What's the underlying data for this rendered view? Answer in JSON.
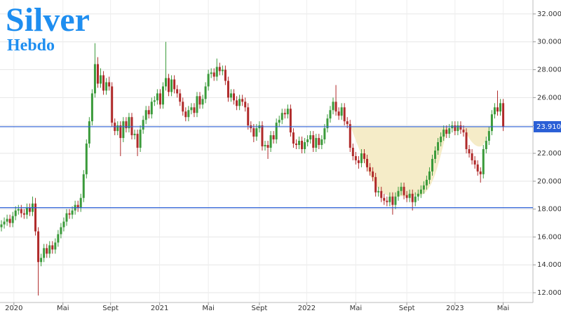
{
  "chart_data": {
    "type": "candlestick",
    "title": "Silver",
    "subtitle": "Hebdo",
    "up_color": "#3a9a3a",
    "down_color": "#b02a2a",
    "grid": true,
    "ylim": [
      11400,
      33000
    ],
    "yticks": [
      {
        "value": 12000,
        "label": "12.000"
      },
      {
        "value": 14000,
        "label": "14.000"
      },
      {
        "value": 16000,
        "label": "16.000"
      },
      {
        "value": 18000,
        "label": "18.000"
      },
      {
        "value": 20000,
        "label": "20.000"
      },
      {
        "value": 22000,
        "label": "22.000"
      },
      {
        "value": 24000,
        "label": "24.000"
      },
      {
        "value": 26000,
        "label": "26.000"
      },
      {
        "value": 28000,
        "label": "28.000"
      },
      {
        "value": 30000,
        "label": "30.000"
      },
      {
        "value": 32000,
        "label": "32.000"
      }
    ],
    "xlim": [
      -0.5,
      187
    ],
    "xticks": [
      {
        "value": 4.4,
        "label": "2020"
      },
      {
        "value": 21.7,
        "label": "Mai"
      },
      {
        "value": 38.5,
        "label": "Sept"
      },
      {
        "value": 55.8,
        "label": "2021"
      },
      {
        "value": 73,
        "label": "Mai"
      },
      {
        "value": 91,
        "label": "Sept"
      },
      {
        "value": 107.7,
        "label": "2022"
      },
      {
        "value": 125,
        "label": "Mai"
      },
      {
        "value": 143,
        "label": "Sept"
      },
      {
        "value": 160,
        "label": "2023"
      },
      {
        "value": 177,
        "label": "Mai"
      }
    ],
    "hlines": [
      {
        "value": 23910,
        "label": "23.910",
        "color": "#2a5fd6"
      },
      {
        "value": 18100,
        "color": "#2a5fd6"
      }
    ],
    "area_color": "#f5ecc8",
    "open": [
      16700,
      16900,
      17100,
      17300,
      17000,
      17500,
      17900,
      18000,
      17700,
      17600,
      18100,
      17800,
      18400,
      16400,
      14200,
      14500,
      15200,
      14800,
      15400,
      15100,
      15600,
      16200,
      16700,
      17100,
      17700,
      17600,
      17900,
      18300,
      18100,
      18800,
      20500,
      22700,
      24300,
      26300,
      28400,
      27000,
      27600,
      26500,
      27100,
      26800,
      24200,
      23600,
      24000,
      23100,
      24300,
      23800,
      24600,
      23300,
      23400,
      22400,
      23700,
      24400,
      25100,
      24800,
      25700,
      25800,
      26300,
      25500,
      26800,
      27400,
      26400,
      27300,
      26600,
      26300,
      25700,
      25000,
      24600,
      25100,
      25300,
      24900,
      26100,
      25500,
      25900,
      26800,
      27700,
      27800,
      27500,
      28200,
      27900,
      28000,
      27200,
      26000,
      26300,
      25800,
      25400,
      25900,
      25700,
      25300,
      24000,
      23800,
      23200,
      23800,
      24000,
      22500,
      22600,
      22400,
      23300,
      23000,
      24200,
      24400,
      24900,
      24800,
      25200,
      23500,
      22700,
      22600,
      22900,
      22300,
      22800,
      23000,
      23300,
      22400,
      23100,
      22600,
      23000,
      23800,
      24500,
      25100,
      25700,
      25000,
      24700,
      25300,
      24300,
      24100,
      22400,
      21800,
      21500,
      21300,
      22000,
      21600,
      21000,
      20700,
      20300,
      19200,
      19300,
      18800,
      18600,
      18500,
      18900,
      18300,
      18900,
      19300,
      19600,
      19000,
      18800,
      19100,
      18500,
      18900,
      19100,
      19400,
      19700,
      20100,
      20700,
      21600,
      22200,
      22800,
      23200,
      23700,
      23400,
      23800,
      24000,
      23600,
      24000,
      23700,
      23500,
      22300,
      22000,
      21500,
      21200,
      20700,
      20500,
      22300,
      22900,
      23600,
      24800,
      25300,
      25000,
      25600
    ],
    "high": [
      17200,
      17400,
      17600,
      17600,
      17800,
      18200,
      18300,
      18300,
      18000,
      18400,
      18400,
      18900,
      18800,
      16700,
      14800,
      15500,
      15500,
      15700,
      15700,
      15900,
      16500,
      17000,
      17400,
      18000,
      18000,
      18200,
      18600,
      18600,
      19100,
      20800,
      23000,
      24600,
      26600,
      29900,
      28900,
      28100,
      27900,
      27400,
      27500,
      27100,
      24500,
      24300,
      24300,
      24600,
      24600,
      24900,
      24900,
      23700,
      23700,
      24000,
      24700,
      25400,
      25400,
      26000,
      26100,
      26600,
      26600,
      27100,
      30000,
      27700,
      27600,
      27600,
      26900,
      26600,
      26000,
      25300,
      25400,
      25600,
      25600,
      26400,
      26400,
      26200,
      27100,
      28000,
      28100,
      28100,
      28800,
      28500,
      28300,
      28300,
      27500,
      26600,
      26600,
      26100,
      26200,
      26200,
      26000,
      25600,
      24300,
      24100,
      24100,
      24300,
      24300,
      22900,
      22900,
      23600,
      23600,
      24500,
      24700,
      25200,
      25200,
      25500,
      25500,
      23800,
      23000,
      23200,
      23200,
      23100,
      23300,
      23600,
      23600,
      23400,
      23400,
      23300,
      24100,
      24800,
      25400,
      26000,
      26900,
      25300,
      25600,
      25600,
      24600,
      24400,
      22700,
      22100,
      21800,
      22300,
      22300,
      21900,
      21300,
      21000,
      20600,
      19600,
      19600,
      19100,
      18900,
      19200,
      19200,
      19200,
      19600,
      19900,
      19900,
      19300,
      19400,
      19400,
      19200,
      19400,
      19700,
      20000,
      20400,
      21000,
      21900,
      22500,
      23100,
      23500,
      24000,
      24000,
      24100,
      24300,
      24300,
      24300,
      24300,
      24000,
      23800,
      22600,
      22300,
      21800,
      21500,
      21000,
      22600,
      23200,
      23900,
      25100,
      25600,
      26500,
      25900,
      25900
    ],
    "low": [
      16400,
      16600,
      16800,
      16700,
      16700,
      17200,
      17600,
      17400,
      17300,
      17300,
      17500,
      17500,
      16100,
      11800,
      13900,
      14200,
      14500,
      14500,
      14800,
      14800,
      15300,
      15900,
      16400,
      16800,
      17300,
      17300,
      17600,
      17800,
      17800,
      18500,
      20200,
      22400,
      24000,
      26000,
      26700,
      26700,
      26200,
      26200,
      26500,
      23900,
      23300,
      23300,
      21800,
      22800,
      23500,
      23500,
      23000,
      23000,
      21800,
      22100,
      23400,
      24100,
      24500,
      24500,
      25400,
      25500,
      25200,
      25200,
      26500,
      26100,
      26100,
      26300,
      26000,
      25400,
      24700,
      24300,
      24300,
      24800,
      24600,
      24600,
      25200,
      25200,
      25600,
      26500,
      27400,
      27200,
      27200,
      27600,
      27600,
      26900,
      25700,
      25700,
      25500,
      25100,
      25100,
      25400,
      25000,
      23700,
      23500,
      22800,
      22900,
      23500,
      22200,
      22200,
      21600,
      22100,
      22700,
      22700,
      23900,
      24100,
      24500,
      24500,
      23200,
      22400,
      22300,
      22300,
      22000,
      22000,
      22500,
      22700,
      22100,
      22100,
      22300,
      22300,
      22700,
      23500,
      24200,
      24800,
      24700,
      24400,
      24400,
      24000,
      23800,
      22100,
      21500,
      21200,
      20900,
      21000,
      21300,
      20700,
      20400,
      20000,
      18900,
      18900,
      18500,
      18300,
      18200,
      18200,
      17600,
      18000,
      18600,
      19000,
      18700,
      18500,
      18500,
      17900,
      18200,
      18600,
      18800,
      19100,
      19400,
      19800,
      20400,
      21300,
      21900,
      22500,
      22900,
      23100,
      23100,
      23500,
      23300,
      23300,
      23400,
      23200,
      22000,
      21700,
      21200,
      20900,
      20400,
      19900,
      20200,
      22000,
      22600,
      23300,
      24500,
      24700,
      24700,
      23600
    ],
    "close": [
      16900,
      17100,
      17300,
      17000,
      17500,
      17900,
      18000,
      17700,
      17600,
      18100,
      17800,
      18400,
      16400,
      14200,
      14500,
      15200,
      14800,
      15400,
      15100,
      15600,
      16200,
      16700,
      17100,
      17700,
      17600,
      17900,
      18300,
      18100,
      18800,
      20500,
      22700,
      24300,
      26300,
      28400,
      27000,
      27600,
      26500,
      27100,
      26800,
      24200,
      23600,
      24000,
      23100,
      24300,
      23800,
      24600,
      23300,
      23400,
      22400,
      23700,
      24400,
      25100,
      24800,
      25700,
      25800,
      26300,
      25500,
      26800,
      27400,
      26400,
      27300,
      26600,
      26300,
      25700,
      25000,
      24600,
      25100,
      25300,
      24900,
      26100,
      25500,
      25900,
      26800,
      27700,
      27800,
      27500,
      28200,
      27900,
      28000,
      27200,
      26000,
      26300,
      25800,
      25400,
      25900,
      25700,
      25300,
      24000,
      23800,
      23200,
      23800,
      24000,
      22500,
      22600,
      22400,
      23300,
      23000,
      24200,
      24400,
      24900,
      24800,
      25200,
      23500,
      22700,
      22600,
      22900,
      22300,
      22800,
      23000,
      23300,
      22400,
      23100,
      22600,
      23000,
      23800,
      24500,
      25100,
      25700,
      25000,
      24700,
      25300,
      24300,
      24100,
      22400,
      21800,
      21500,
      21300,
      22000,
      21600,
      21000,
      20700,
      20300,
      19200,
      19300,
      18800,
      18600,
      18500,
      18900,
      18300,
      18900,
      19300,
      19600,
      19000,
      18800,
      19100,
      18500,
      18900,
      19100,
      19400,
      19700,
      20100,
      20700,
      21600,
      22200,
      22800,
      23200,
      23700,
      23400,
      23800,
      24000,
      23600,
      24000,
      23700,
      23500,
      22300,
      22000,
      21500,
      21200,
      20700,
      20500,
      22300,
      22900,
      23600,
      24800,
      25300,
      25000,
      25600,
      23900
    ]
  }
}
